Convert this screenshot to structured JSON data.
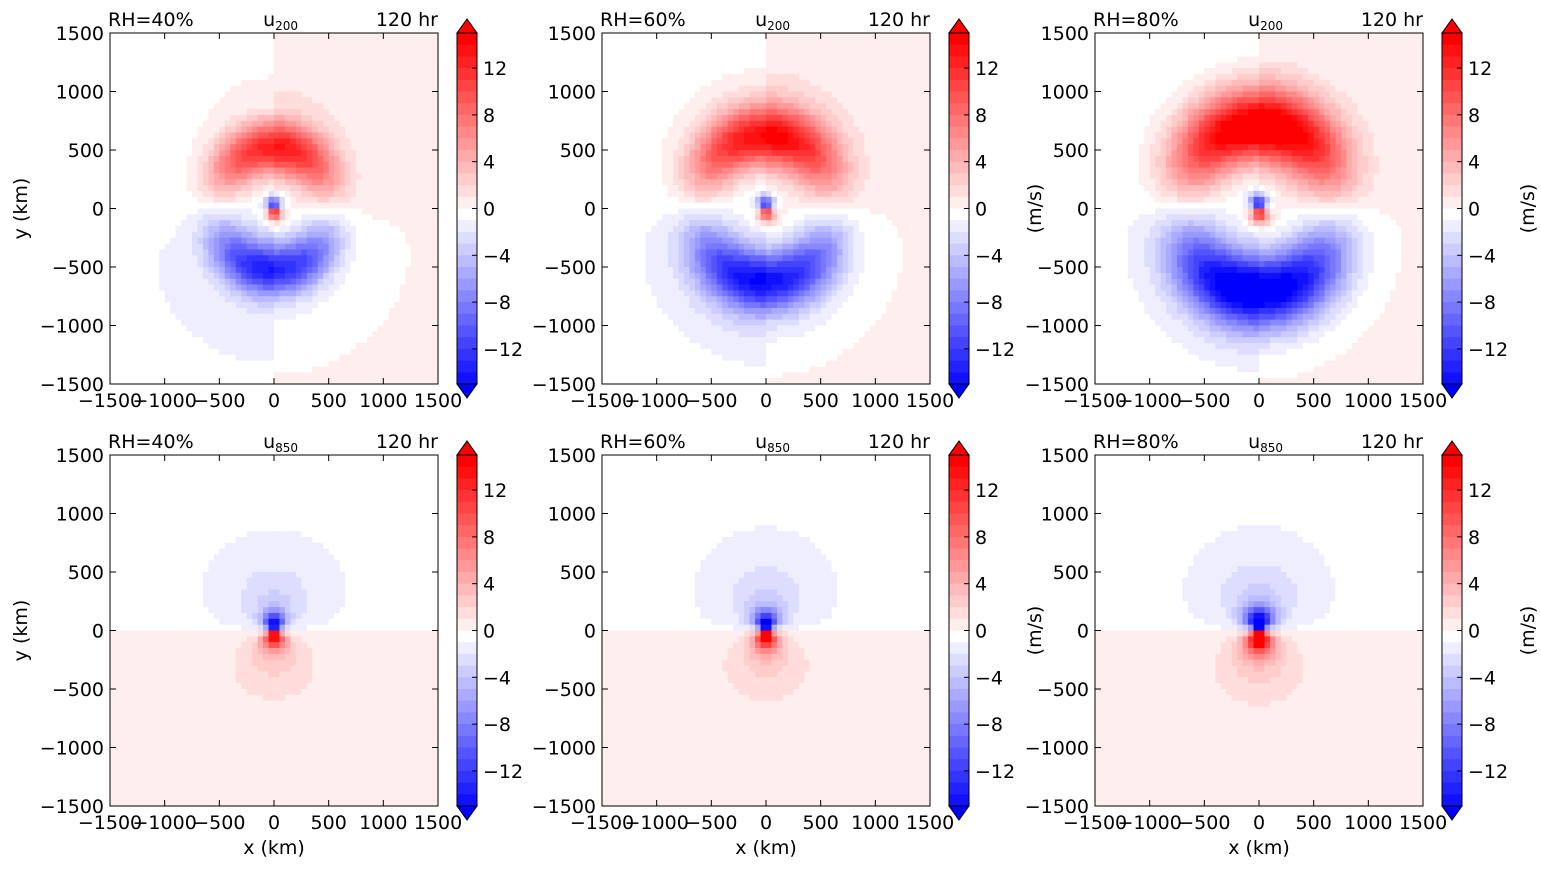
{
  "chart_data": [
    {
      "type": "heatmap",
      "panel_row": 1,
      "panel_col": 1,
      "left_title": "RH=40%",
      "center_title": "u",
      "center_title_sub": "200",
      "right_title": "120 hr",
      "xlabel": "",
      "ylabel": "y (km)",
      "colorbar_label": "",
      "x_ticks": [
        -1500,
        -1000,
        -500,
        0,
        500,
        1000,
        1500
      ],
      "y_ticks": [
        -1500,
        -1000,
        -500,
        0,
        500,
        1000,
        1500
      ],
      "xlim": [
        -1500,
        1500
      ],
      "ylim": [
        -1500,
        1500
      ],
      "colorbar_ticks": [
        -12,
        -8,
        -4,
        0,
        4,
        8,
        12
      ],
      "clim": [
        -15,
        15
      ],
      "pattern": "dipole",
      "north_sign": 1,
      "amplitude": 0.95,
      "ring_radius": 520,
      "ring_width": 230,
      "core_strength": 1.0,
      "core_radius": 90,
      "outer_ring": 0.18
    },
    {
      "type": "heatmap",
      "panel_row": 1,
      "panel_col": 2,
      "left_title": "RH=60%",
      "center_title": "u",
      "center_title_sub": "200",
      "right_title": "120 hr",
      "xlabel": "",
      "ylabel": "",
      "colorbar_label": "(m/s)",
      "x_ticks": [
        -1500,
        -1000,
        -500,
        0,
        500,
        1000,
        1500
      ],
      "y_ticks": [
        -1500,
        -1000,
        -500,
        0,
        500,
        1000,
        1500
      ],
      "xlim": [
        -1500,
        1500
      ],
      "ylim": [
        -1500,
        1500
      ],
      "colorbar_ticks": [
        -12,
        -8,
        -4,
        0,
        4,
        8,
        12
      ],
      "clim": [
        -15,
        15
      ],
      "pattern": "dipole",
      "north_sign": 1,
      "amplitude": 1.05,
      "ring_radius": 620,
      "ring_width": 260,
      "core_strength": 0.9,
      "core_radius": 100,
      "outer_ring": 0.2
    },
    {
      "type": "heatmap",
      "panel_row": 1,
      "panel_col": 3,
      "left_title": "RH=80%",
      "center_title": "u",
      "center_title_sub": "200",
      "right_title": "120 hr",
      "xlabel": "",
      "ylabel": "",
      "colorbar_label": "(m/s)",
      "x_ticks": [
        -1500,
        -1000,
        -500,
        0,
        500,
        1000,
        1500
      ],
      "y_ticks": [
        -1500,
        -1000,
        -500,
        0,
        500,
        1000,
        1500
      ],
      "xlim": [
        -1500,
        1500
      ],
      "ylim": [
        -1500,
        1500
      ],
      "colorbar_ticks": [
        -12,
        -8,
        -4,
        0,
        4,
        8,
        12
      ],
      "clim": [
        -15,
        15
      ],
      "pattern": "dipole",
      "north_sign": 1,
      "amplitude": 1.25,
      "ring_radius": 700,
      "ring_width": 300,
      "core_strength": 1.0,
      "core_radius": 110,
      "outer_ring": 0.22
    },
    {
      "type": "heatmap",
      "panel_row": 2,
      "panel_col": 1,
      "left_title": "RH=40%",
      "center_title": "u",
      "center_title_sub": "850",
      "right_title": "120 hr",
      "xlabel": "x (km)",
      "ylabel": "y (km)",
      "colorbar_label": "",
      "x_ticks": [
        -1500,
        -1000,
        -500,
        0,
        500,
        1000,
        1500
      ],
      "y_ticks": [
        -1500,
        -1000,
        -500,
        0,
        500,
        1000,
        1500
      ],
      "xlim": [
        -1500,
        1500
      ],
      "ylim": [
        -1500,
        1500
      ],
      "colorbar_ticks": [
        -12,
        -8,
        -4,
        0,
        4,
        8,
        12
      ],
      "clim": [
        -15,
        15
      ],
      "pattern": "core",
      "north_sign": -1,
      "amplitude": 1.0,
      "ring_radius": 120,
      "ring_width": 90,
      "core_strength": 1.0,
      "core_radius": 130,
      "outer_ring": 0.3
    },
    {
      "type": "heatmap",
      "panel_row": 2,
      "panel_col": 2,
      "left_title": "RH=60%",
      "center_title": "u",
      "center_title_sub": "850",
      "right_title": "120 hr",
      "xlabel": "x (km)",
      "ylabel": "",
      "colorbar_label": "(m/s)",
      "x_ticks": [
        -1500,
        -1000,
        -500,
        0,
        500,
        1000,
        1500
      ],
      "y_ticks": [
        -1500,
        -1000,
        -500,
        0,
        500,
        1000,
        1500
      ],
      "xlim": [
        -1500,
        1500
      ],
      "ylim": [
        -1500,
        1500
      ],
      "colorbar_ticks": [
        -12,
        -8,
        -4,
        0,
        4,
        8,
        12
      ],
      "clim": [
        -15,
        15
      ],
      "pattern": "core",
      "north_sign": -1,
      "amplitude": 1.05,
      "ring_radius": 130,
      "ring_width": 100,
      "core_strength": 1.0,
      "core_radius": 140,
      "outer_ring": 0.32
    },
    {
      "type": "heatmap",
      "panel_row": 2,
      "panel_col": 3,
      "left_title": "RH=80%",
      "center_title": "u",
      "center_title_sub": "850",
      "right_title": "120 hr",
      "xlabel": "x (km)",
      "ylabel": "",
      "colorbar_label": "(m/s)",
      "x_ticks": [
        -1500,
        -1000,
        -500,
        0,
        500,
        1000,
        1500
      ],
      "y_ticks": [
        -1500,
        -1000,
        -500,
        0,
        500,
        1000,
        1500
      ],
      "xlim": [
        -1500,
        1500
      ],
      "ylim": [
        -1500,
        1500
      ],
      "colorbar_ticks": [
        -12,
        -8,
        -4,
        0,
        4,
        8,
        12
      ],
      "clim": [
        -15,
        15
      ],
      "pattern": "core",
      "north_sign": -1,
      "amplitude": 1.2,
      "ring_radius": 150,
      "ring_width": 110,
      "core_strength": 1.0,
      "core_radius": 160,
      "outer_ring": 0.36
    }
  ],
  "colormap": {
    "negative": "#0000ff",
    "zero": "#ffffff",
    "positive": "#ff0000"
  }
}
